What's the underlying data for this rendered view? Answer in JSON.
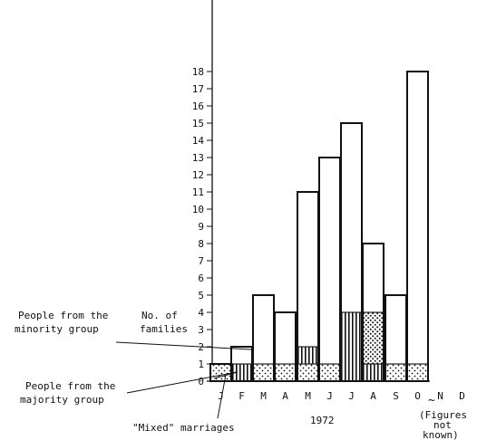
{
  "chart_data": {
    "type": "bar",
    "stacked": true,
    "categories": [
      "J",
      "F",
      "M",
      "A",
      "M",
      "J",
      "J",
      "A",
      "S",
      "O",
      "N",
      "D"
    ],
    "x_group_label": "1972",
    "ylabel": "No. of families",
    "ylim": [
      0,
      18
    ],
    "yticks": [
      "0",
      "1",
      "2",
      "3",
      "4",
      "5",
      "6",
      "7",
      "8",
      "9",
      "10",
      "11",
      "12",
      "13",
      "14",
      "15",
      "16",
      "17",
      "18"
    ],
    "series": [
      {
        "name": "\"Mixed\" marriages",
        "pattern": "dotted",
        "values": [
          1,
          0,
          1,
          1,
          1,
          1,
          0,
          0,
          1,
          1,
          null,
          null
        ]
      },
      {
        "name": "People from the majority group",
        "pattern": "vertical-stripes",
        "values": [
          0,
          1,
          0,
          0,
          1,
          0,
          4,
          1,
          0,
          0,
          null,
          null
        ]
      },
      {
        "name": "",
        "pattern": "dotted",
        "values": [
          0,
          0,
          0,
          0,
          0,
          0,
          0,
          3,
          0,
          0,
          null,
          null
        ]
      },
      {
        "name": "People from the minority group",
        "pattern": "blank",
        "values": [
          0,
          1,
          4,
          3,
          9,
          12,
          11,
          4,
          4,
          17,
          null,
          null
        ]
      }
    ],
    "totals": [
      1,
      2,
      5,
      4,
      11,
      13,
      15,
      8,
      5,
      18,
      null,
      null
    ],
    "annotations": {
      "minority": "People from the minority group",
      "majority": "People from the majority group",
      "mixed": "\"Mixed\" marriages",
      "unknown": "(Figures not known)"
    },
    "unknown_marker": "~"
  }
}
